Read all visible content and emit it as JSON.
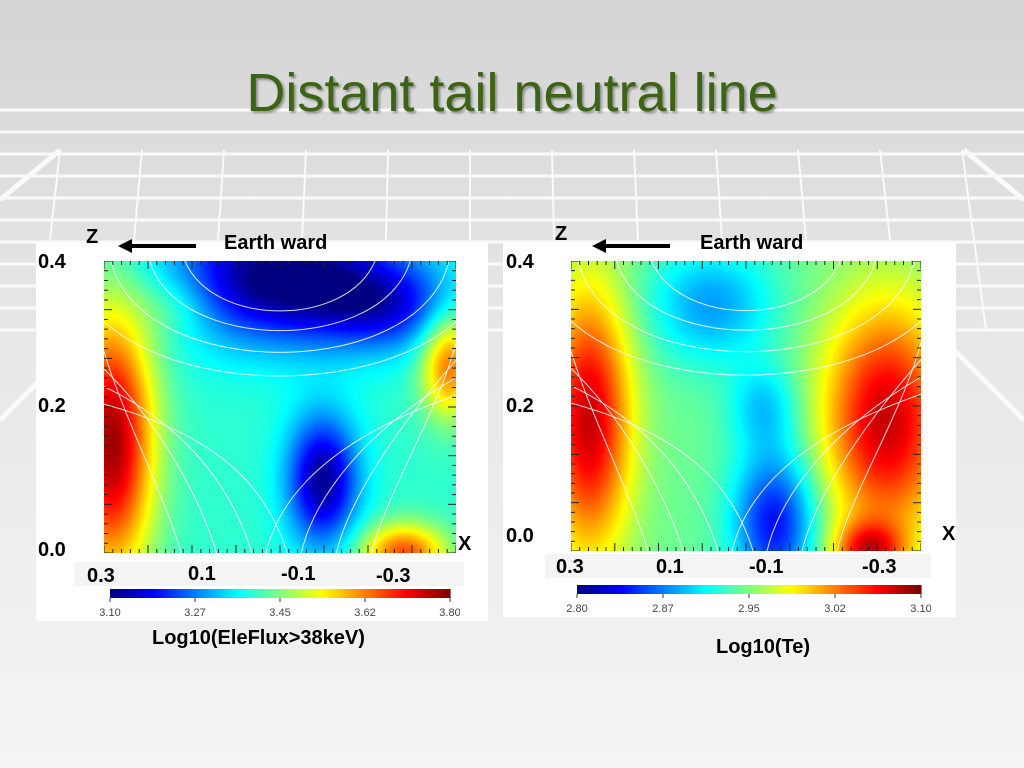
{
  "slide": {
    "title": "Distant tail neutral line"
  },
  "chart_data": [
    {
      "type": "heatmap",
      "xlabel": "X",
      "ylabel": "Z",
      "annotation": "Earth ward",
      "x_ticks": [
        "0.3",
        "0.1",
        "-0.1",
        "-0.3"
      ],
      "y_ticks": [
        "0.0",
        "0.2",
        "0.4"
      ],
      "xlim": [
        0.35,
        -0.35
      ],
      "ylim": [
        0.0,
        0.4
      ],
      "colorbar": {
        "label": "Log10(EleFlux>38keV)",
        "ticks": [
          "3.10",
          "3.27",
          "3.45",
          "3.62",
          "3.80"
        ],
        "range": [
          3.1,
          3.8
        ]
      },
      "field_lines": true
    },
    {
      "type": "heatmap",
      "xlabel": "X",
      "ylabel": "Z",
      "annotation": "Earth ward",
      "x_ticks": [
        "0.3",
        "0.1",
        "-0.1",
        "-0.3"
      ],
      "y_ticks": [
        "0.0",
        "0.2",
        "0.4"
      ],
      "xlim": [
        0.35,
        -0.35
      ],
      "ylim": [
        0.0,
        0.4
      ],
      "colorbar": {
        "label": "Log10(Te)",
        "ticks": [
          "2.80",
          "2.87",
          "2.95",
          "3.02",
          "3.10"
        ],
        "range": [
          2.8,
          3.1
        ]
      },
      "field_lines": true
    }
  ]
}
